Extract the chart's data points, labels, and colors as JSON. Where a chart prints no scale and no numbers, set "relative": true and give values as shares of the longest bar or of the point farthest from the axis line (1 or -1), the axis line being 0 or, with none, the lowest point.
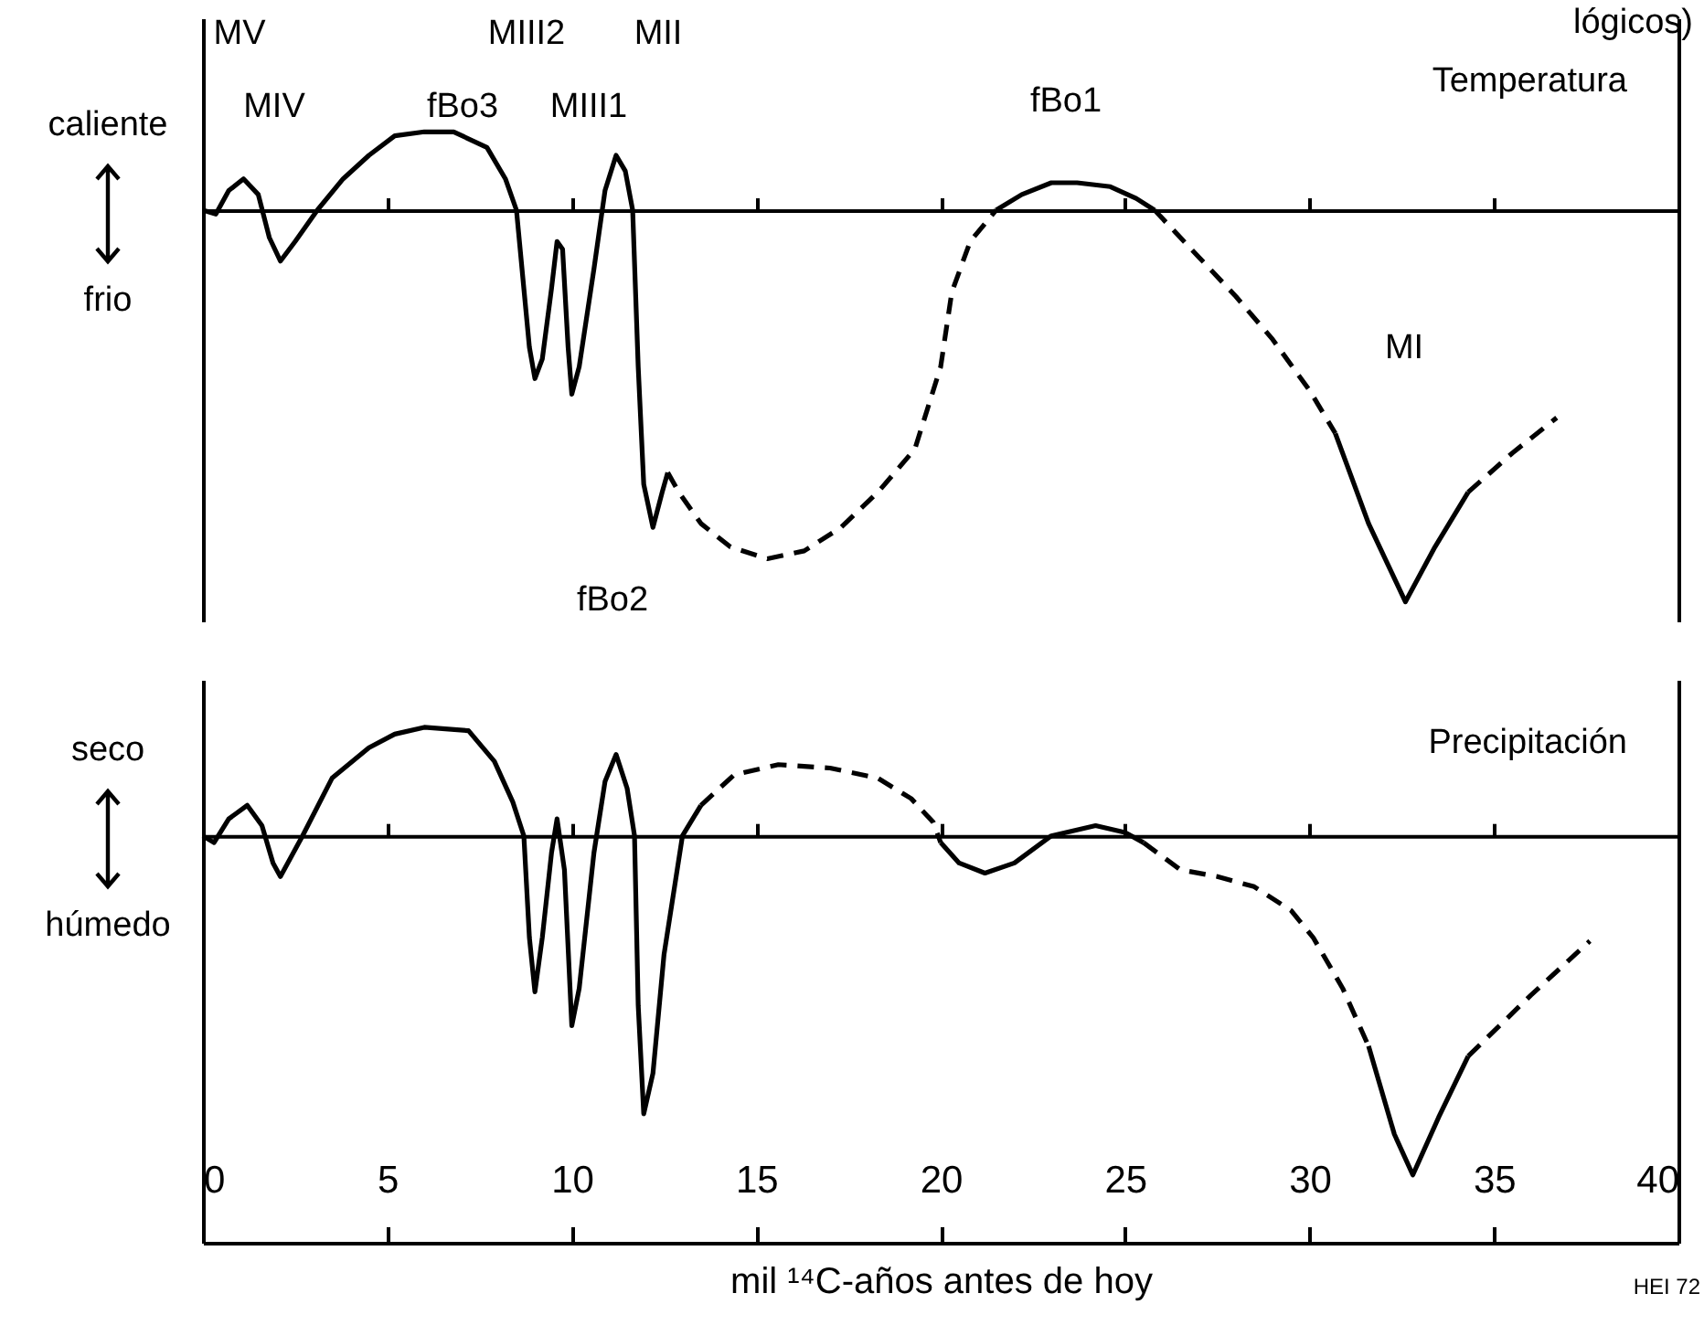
{
  "chart_data": [
    {
      "type": "line",
      "title": "Temperatura",
      "subtitle": "lógicos)",
      "relative": true,
      "xlim": [
        0,
        40
      ],
      "xticks": [
        0,
        5,
        10,
        15,
        20,
        25,
        30,
        35,
        40
      ],
      "tick_labels": false,
      "grid": false,
      "annotations": [
        "caliente",
        "frio",
        "MV",
        "MIV",
        "fBo3",
        "MIII2",
        "MIII1",
        "MII",
        "fBo1",
        "MI",
        "fBo2"
      ],
      "series": [
        {
          "color": "#000000",
          "line_style": "solid",
          "x": [
            0,
            0.35,
            0.7,
            1.1,
            1.5,
            1.8,
            2.1,
            2.5,
            3.1,
            3.8,
            4.5,
            5.2,
            6.0,
            6.8,
            7.7,
            8.2,
            8.5,
            8.7,
            8.85,
            9.0,
            9.2,
            9.45,
            9.6,
            9.75,
            9.9,
            10.0,
            10.2,
            10.6,
            10.9,
            11.2,
            11.45,
            11.65,
            11.8,
            11.95,
            12.2,
            12.45,
            12.6
          ],
          "values": [
            0,
            -0.01,
            0.05,
            0.08,
            0.04,
            -0.07,
            -0.13,
            -0.08,
            0,
            0.08,
            0.14,
            0.19,
            0.2,
            0.2,
            0.16,
            0.08,
            0,
            -0.2,
            -0.35,
            -0.43,
            -0.38,
            -0.2,
            -0.08,
            -0.1,
            -0.35,
            -0.47,
            -0.4,
            -0.15,
            0.05,
            0.14,
            0.1,
            0,
            -0.4,
            -0.7,
            -0.81,
            -0.72,
            -0.67
          ]
        },
        {
          "color": "#000000",
          "line_style": "dashed",
          "x": [
            12.6,
            12.9,
            13.5,
            14.3,
            15.3,
            16.3,
            17.3,
            18.3,
            19.3,
            20.0,
            20.3,
            20.8,
            21.5
          ],
          "values": [
            -0.67,
            -0.72,
            -0.8,
            -0.86,
            -0.89,
            -0.87,
            -0.81,
            -0.72,
            -0.61,
            -0.4,
            -0.21,
            -0.08,
            0
          ]
        },
        {
          "color": "#000000",
          "line_style": "solid",
          "x": [
            21.5,
            22.2,
            23.0,
            23.7,
            24.6,
            25.3,
            25.8
          ],
          "values": [
            0,
            0.04,
            0.07,
            0.07,
            0.06,
            0.03,
            0
          ]
        },
        {
          "color": "#000000",
          "line_style": "dashed",
          "x": [
            25.8,
            27.0,
            28.0,
            29.0,
            30.0,
            30.7
          ],
          "values": [
            0,
            -0.12,
            -0.22,
            -0.33,
            -0.46,
            -0.57
          ]
        },
        {
          "color": "#000000",
          "line_style": "solid",
          "x": [
            30.7,
            31.6,
            32.6,
            33.4,
            34.3
          ],
          "values": [
            -0.57,
            -0.8,
            -1,
            -0.86,
            -0.72
          ]
        },
        {
          "color": "#000000",
          "line_style": "dashed",
          "x": [
            34.3,
            35.5,
            36.7
          ],
          "values": [
            -0.72,
            -0.62,
            -0.53
          ]
        }
      ]
    },
    {
      "type": "line",
      "title": "Precipitación",
      "xlabel": "mil ¹⁴C-años antes de hoy",
      "relative": true,
      "xlim": [
        0,
        40
      ],
      "xticks": [
        0,
        5,
        10,
        15,
        20,
        25,
        30,
        35,
        40
      ],
      "tick_labels": "x",
      "grid": false,
      "annotations": [
        "seco",
        "húmedo",
        "HEI 72"
      ],
      "series": [
        {
          "color": "#000000",
          "line_style": "solid",
          "x": [
            0,
            0.3,
            0.7,
            1.2,
            1.6,
            1.9,
            2.1,
            2.4,
            2.7,
            3.5,
            4.5,
            5.2,
            6.0,
            7.2,
            7.9,
            8.4,
            8.7,
            8.85,
            9.0,
            9.2,
            9.45,
            9.6,
            9.8,
            10.0,
            10.2,
            10.6,
            10.9,
            11.2,
            11.5,
            11.7,
            11.8,
            11.95,
            12.2,
            12.5,
            13.0,
            13.5
          ],
          "values": [
            0,
            -0.02,
            0.05,
            0.09,
            0.03,
            -0.08,
            -0.12,
            -0.06,
            0,
            0.17,
            0.26,
            0.3,
            0.32,
            0.31,
            0.22,
            0.1,
            0,
            -0.3,
            -0.46,
            -0.3,
            -0.05,
            0.05,
            -0.1,
            -0.56,
            -0.45,
            -0.05,
            0.16,
            0.24,
            0.14,
            0,
            -0.5,
            -0.82,
            -0.7,
            -0.35,
            0,
            0.09
          ]
        },
        {
          "color": "#000000",
          "line_style": "dashed",
          "x": [
            13.5,
            14.4,
            15.6,
            17.0,
            18.3,
            19.2,
            19.8,
            20.0
          ],
          "values": [
            0.09,
            0.18,
            0.21,
            0.2,
            0.17,
            0.11,
            0.04,
            -0.02
          ]
        },
        {
          "color": "#000000",
          "line_style": "solid",
          "x": [
            20.0,
            20.5,
            21.2,
            22.0,
            23.0,
            24.2,
            25.0,
            25.5
          ],
          "values": [
            -0.02,
            -0.08,
            -0.11,
            -0.08,
            0,
            0.03,
            0.01,
            -0.02
          ]
        },
        {
          "color": "#000000",
          "line_style": "dashed",
          "x": [
            25.5,
            26.5,
            27.5,
            28.5,
            29.5,
            30.1,
            30.9,
            31.6
          ],
          "values": [
            -0.02,
            -0.1,
            -0.12,
            -0.15,
            -0.22,
            -0.3,
            -0.45,
            -0.62
          ]
        },
        {
          "color": "#000000",
          "line_style": "solid",
          "x": [
            31.6,
            32.3,
            32.8,
            33.5,
            34.3
          ],
          "values": [
            -0.62,
            -0.88,
            -1,
            -0.83,
            -0.65
          ]
        },
        {
          "color": "#000000",
          "line_style": "dashed",
          "x": [
            34.3,
            36.0,
            37.6
          ],
          "values": [
            -0.65,
            -0.47,
            -0.31
          ]
        }
      ]
    }
  ]
}
